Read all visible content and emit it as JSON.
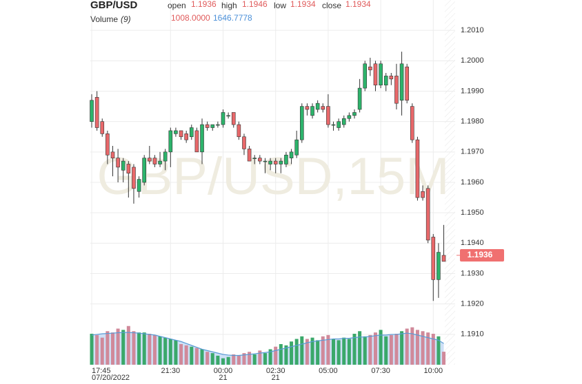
{
  "chart_data": {
    "type": "candlestick",
    "title": "GBP/USD",
    "watermark": "GBP/USD,15M",
    "header": {
      "open_label": "open",
      "high_label": "high",
      "low_label": "low",
      "close_label": "close",
      "open": "1.1936",
      "high": "1.1946",
      "low": "1.1934",
      "close": "1.1934",
      "volume_label": "Volume",
      "volume_period": "(9)",
      "volume": "1008.0000",
      "volume_ma": "1646.7778"
    },
    "price_tag": {
      "value": 1.1936,
      "label": "1.1936"
    },
    "up_color": "#2db36b",
    "down_color": "#e8686a",
    "volume_up_color": "#3aa86a",
    "volume_down_color": "#d0899a",
    "ma_color": "#5b9bd5",
    "open": [
      1.198,
      1.1988,
      1.198,
      1.1976,
      1.197,
      1.1968,
      1.1964,
      1.1966,
      1.1965,
      1.1957,
      1.196,
      1.1968,
      1.1968,
      1.1966,
      1.1967,
      1.197,
      1.1976,
      1.1977,
      1.1976,
      1.1975,
      1.1977,
      1.197,
      1.1979,
      1.1978,
      1.1979,
      1.1979,
      1.1982,
      1.1983,
      1.1979,
      1.1975,
      1.1971,
      1.1968,
      1.1968,
      1.1967,
      1.1966,
      1.1967,
      1.1966,
      1.1966,
      1.1968,
      1.1969,
      1.1974,
      1.1985,
      1.1982,
      1.1984,
      1.1985,
      1.1985,
      1.1979,
      1.1978,
      1.1979,
      1.1981,
      1.1982,
      1.1984,
      1.1991,
      1.1998,
      1.1999,
      1.1992,
      1.1992,
      1.1995,
      1.1995,
      1.1987,
      1.1998,
      1.1985,
      1.1974,
      1.1957,
      1.1958,
      1.1942,
      1.1928,
      1.1936
    ],
    "high": [
      1.1989,
      1.199,
      1.1981,
      1.1977,
      1.1972,
      1.1971,
      1.1968,
      1.1967,
      1.1966,
      1.1962,
      1.1969,
      1.1972,
      1.1969,
      1.197,
      1.1971,
      1.1978,
      1.1978,
      1.1977,
      1.1977,
      1.1979,
      1.1978,
      1.1981,
      1.198,
      1.1979,
      1.198,
      1.1984,
      1.1983,
      1.1983,
      1.198,
      1.1976,
      1.1972,
      1.1969,
      1.1969,
      1.1968,
      1.1968,
      1.1968,
      1.1968,
      1.197,
      1.1971,
      1.1977,
      1.1986,
      1.1986,
      1.1986,
      1.1987,
      1.1986,
      1.1989,
      1.198,
      1.1981,
      1.1982,
      1.1983,
      1.1984,
      1.1994,
      1.2,
      1.2001,
      1.2,
      1.2,
      1.1996,
      1.1996,
      1.1999,
      1.2003,
      1.1999,
      1.1986,
      1.1975,
      1.1959,
      1.1959,
      1.1943,
      1.194,
      1.1946
    ],
    "low": [
      1.1978,
      1.1977,
      1.1975,
      1.1966,
      1.1962,
      1.196,
      1.196,
      1.1955,
      1.1953,
      1.1955,
      1.1959,
      1.1966,
      1.1965,
      1.1965,
      1.1964,
      1.1965,
      1.1975,
      1.1974,
      1.1973,
      1.1974,
      1.197,
      1.1966,
      1.1977,
      1.1977,
      1.1978,
      1.1978,
      1.1981,
      1.1978,
      1.1974,
      1.1969,
      1.1967,
      1.1966,
      1.1966,
      1.1963,
      1.1964,
      1.1963,
      1.1963,
      1.1965,
      1.1966,
      1.1968,
      1.1973,
      1.1982,
      1.1981,
      1.1983,
      1.1983,
      1.1978,
      1.1977,
      1.1977,
      1.1978,
      1.198,
      1.1981,
      1.1983,
      1.199,
      1.1995,
      1.199,
      1.1991,
      1.199,
      1.1992,
      1.1984,
      1.1982,
      1.1986,
      1.1973,
      1.1954,
      1.1954,
      1.194,
      1.1921,
      1.1922,
      1.1934
    ],
    "close": [
      1.1987,
      1.1978,
      1.1976,
      1.1969,
      1.1968,
      1.1965,
      1.1967,
      1.1963,
      1.1958,
      1.1961,
      1.1968,
      1.1967,
      1.1966,
      1.1967,
      1.197,
      1.1977,
      1.1977,
      1.1975,
      1.1974,
      1.1978,
      1.197,
      1.1979,
      1.1978,
      1.1979,
      1.1979,
      1.1983,
      1.1982,
      1.1979,
      1.1975,
      1.1971,
      1.1967,
      1.1968,
      1.1967,
      1.1967,
      1.1967,
      1.1966,
      1.1967,
      1.1969,
      1.197,
      1.1974,
      1.1985,
      1.1984,
      1.1985,
      1.1986,
      1.1984,
      1.1979,
      1.1979,
      1.198,
      1.1981,
      1.1982,
      1.1983,
      1.1991,
      1.1999,
      1.1997,
      1.1992,
      1.1999,
      1.1995,
      1.1994,
      1.1986,
      1.1999,
      1.1987,
      1.1974,
      1.1955,
      1.1955,
      1.1941,
      1.1928,
      1.1937,
      1.1934
    ],
    "volume": [
      2400,
      2300,
      2100,
      2600,
      2500,
      2800,
      2700,
      3000,
      2600,
      2500,
      2500,
      2400,
      2300,
      2200,
      2100,
      2000,
      1900,
      1600,
      1500,
      1400,
      1300,
      1200,
      1000,
      900,
      700,
      500,
      600,
      800,
      700,
      900,
      1000,
      800,
      1100,
      900,
      1200,
      1400,
      1600,
      1500,
      1800,
      2000,
      2200,
      2000,
      2100,
      1900,
      2200,
      2300,
      2000,
      1900,
      2100,
      2000,
      2400,
      2600,
      2200,
      2300,
      2500,
      2700,
      2200,
      2300,
      2400,
      2600,
      2800,
      2900,
      2700,
      2600,
      2500,
      2400,
      2200,
      1008
    ],
    "volume_ma": [
      2300,
      2350,
      2400,
      2420,
      2450,
      2480,
      2500,
      2500,
      2480,
      2450,
      2400,
      2350,
      2300,
      2200,
      2100,
      2000,
      1900,
      1800,
      1650,
      1500,
      1350,
      1200,
      1100,
      1000,
      900,
      800,
      750,
      720,
      720,
      760,
      800,
      850,
      900,
      950,
      1000,
      1100,
      1200,
      1300,
      1400,
      1500,
      1600,
      1700,
      1800,
      1850,
      1900,
      1950,
      2000,
      2000,
      2050,
      2050,
      2100,
      2150,
      2150,
      2200,
      2250,
      2300,
      2300,
      2350,
      2350,
      2400,
      2450,
      2400,
      2300,
      2200,
      2100,
      2000,
      1900,
      1646.7778
    ],
    "ylim": [
      1.19,
      1.202
    ],
    "yticks": [
      {
        "value": 1.191,
        "label": "1.1910"
      },
      {
        "value": 1.192,
        "label": "1.1920"
      },
      {
        "value": 1.193,
        "label": "1.1930"
      },
      {
        "value": 1.194,
        "label": "1.1940"
      },
      {
        "value": 1.195,
        "label": "1.1950"
      },
      {
        "value": 1.196,
        "label": "1.1960"
      },
      {
        "value": 1.197,
        "label": "1.1970"
      },
      {
        "value": 1.198,
        "label": "1.1980"
      },
      {
        "value": 1.199,
        "label": "1.1990"
      },
      {
        "value": 1.2,
        "label": "1.2000"
      },
      {
        "value": 1.201,
        "label": "1.2010"
      }
    ],
    "volume_lim": [
      0,
      3200
    ],
    "xticks": [
      {
        "value": 0,
        "label": "17:45",
        "date": "07/20/2022"
      },
      {
        "value": 15,
        "label": "21:30"
      },
      {
        "value": 25,
        "label": "00:00",
        "date": "21"
      },
      {
        "value": 35,
        "label": "02:30",
        "date": "21"
      },
      {
        "value": 45,
        "label": "05:00"
      },
      {
        "value": 55,
        "label": "07:30"
      },
      {
        "value": 65,
        "label": "10:00"
      }
    ],
    "grid": true
  }
}
